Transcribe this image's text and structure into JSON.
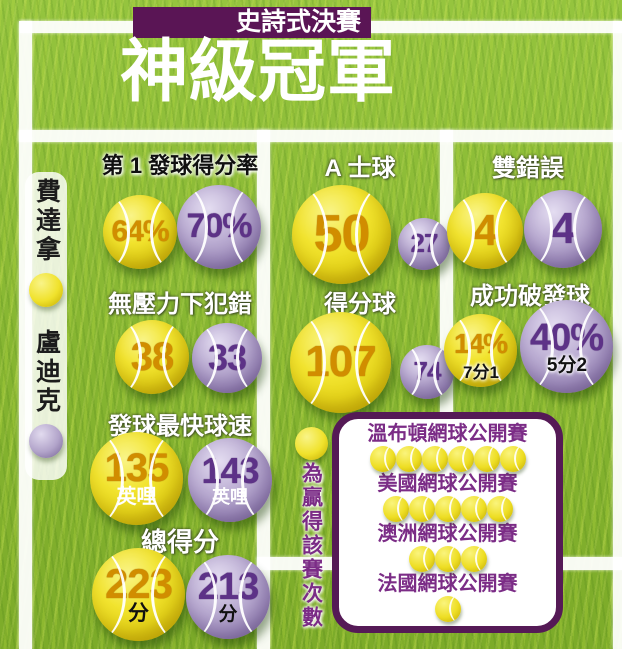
{
  "banner": {
    "label": "史詩式決賽"
  },
  "title": "神級冠軍",
  "players": {
    "federer": {
      "name": "費達拿",
      "ball_color": "#f0e22c"
    },
    "roddick": {
      "name": "盧迪克",
      "ball_color": "#b2a4ca"
    }
  },
  "stats": {
    "first_serve": {
      "label": "第 1 發球得分率",
      "federer": "64%",
      "roddick": "70%"
    },
    "aces": {
      "label": "A 士球",
      "federer": "50",
      "roddick": "27"
    },
    "double_faults": {
      "label": "雙錯誤",
      "federer": "4",
      "roddick": "4"
    },
    "unforced_errors": {
      "label": "無壓力下犯錯",
      "federer": "38",
      "roddick": "33"
    },
    "winners": {
      "label": "得分球",
      "federer": "107",
      "roddick": "74"
    },
    "break_points": {
      "label": "成功破發球",
      "federer": "14%",
      "roddick": "40%",
      "federer_note": "7分1",
      "roddick_note": "5分2"
    },
    "fastest_serve": {
      "label": "發球最快球速",
      "federer": "135",
      "roddick": "143",
      "unit": "英哩"
    },
    "total_points": {
      "label": "總得分",
      "federer": "223",
      "roddick": "213",
      "unit": "分"
    }
  },
  "grand_slams": {
    "legend": "為贏得該賽次數",
    "tournaments": [
      {
        "name": "溫布頓網球公開賽",
        "wins": 6
      },
      {
        "name": "美國網球公開賽",
        "wins": 5
      },
      {
        "name": "澳洲網球公開賽",
        "wins": 3
      },
      {
        "name": "法國網球公開賽",
        "wins": 1
      }
    ]
  },
  "colors": {
    "grass": "#8cbb33",
    "banner_purple": "#5a1555",
    "box_border_purple": "#551a56",
    "tournament_text_purple": "#7b2c86",
    "yellow_ball_value": "#d18d00",
    "purple_ball_value": "#5d3287"
  },
  "chart_data": {
    "type": "pictogram",
    "title": "神級冠軍",
    "subtitle": "史詩式決賽",
    "series": [
      {
        "name": "費達拿",
        "color": "#f0e22c"
      },
      {
        "name": "盧迪克",
        "color": "#b2a4ca"
      }
    ],
    "stats": [
      {
        "label": "第1發球得分率",
        "values": [
          "64%",
          "70%"
        ]
      },
      {
        "label": "A士球",
        "values": [
          50,
          27
        ]
      },
      {
        "label": "雙錯誤",
        "values": [
          4,
          4
        ]
      },
      {
        "label": "無壓力下犯錯",
        "values": [
          38,
          33
        ]
      },
      {
        "label": "得分球",
        "values": [
          107,
          74
        ]
      },
      {
        "label": "成功破發球",
        "values": [
          "14%",
          "40%"
        ],
        "notes": [
          "7分1",
          "5分2"
        ]
      },
      {
        "label": "發球最快球速",
        "values": [
          "135 英哩",
          "143 英哩"
        ]
      },
      {
        "label": "總得分",
        "values": [
          "223 分",
          "213 分"
        ]
      }
    ],
    "grand_slam_wins": {
      "legend": "為贏得該賽次數",
      "categories": [
        "溫布頓網球公開賽",
        "美國網球公開賽",
        "澳洲網球公開賽",
        "法國網球公開賽"
      ],
      "values": [
        6,
        5,
        3,
        1
      ]
    }
  }
}
